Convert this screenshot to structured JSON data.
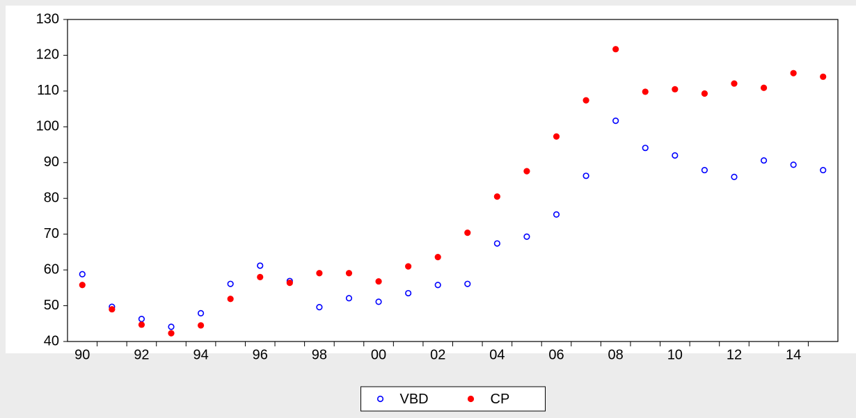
{
  "chart_data": {
    "type": "scatter",
    "categories": [
      "90",
      null,
      "92",
      null,
      "94",
      null,
      "96",
      null,
      "98",
      null,
      "00",
      null,
      "02",
      null,
      "04",
      null,
      "06",
      null,
      "08",
      null,
      "10",
      null,
      "12",
      null,
      "14",
      null
    ],
    "series": [
      {
        "name": "VBD",
        "color": "#0000ff",
        "marker": "hollow",
        "values": [
          58.8,
          49.7,
          46.3,
          44.1,
          47.9,
          56.1,
          61.2,
          56.9,
          49.6,
          52.1,
          51.1,
          53.5,
          55.8,
          56.1,
          67.4,
          69.3,
          75.5,
          86.3,
          101.7,
          94.1,
          92.0,
          87.9,
          86.0,
          90.6,
          89.4,
          87.9
        ]
      },
      {
        "name": "CP",
        "color": "#ff0000",
        "marker": "filled",
        "values": [
          55.8,
          49.0,
          44.7,
          42.3,
          44.5,
          51.9,
          58.0,
          56.4,
          59.1,
          59.1,
          56.8,
          61.0,
          63.6,
          70.4,
          80.5,
          87.6,
          97.3,
          107.4,
          121.7,
          109.8,
          110.5,
          109.3,
          112.1,
          110.9,
          115.0,
          114.0
        ]
      }
    ],
    "ylim": [
      40,
      130
    ],
    "yticks": [
      40,
      50,
      60,
      70,
      80,
      90,
      100,
      110,
      120,
      130
    ],
    "grid": false,
    "legend": "bottom"
  }
}
